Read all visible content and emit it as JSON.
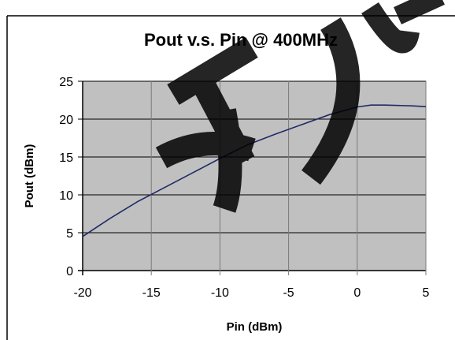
{
  "chart_data": {
    "type": "line",
    "title": "Pout v.s. Pin @ 400MHz",
    "xlabel": "Pin (dBm)",
    "ylabel": "Pout (dBm)",
    "xlim": [
      -20,
      5
    ],
    "ylim": [
      0,
      25
    ],
    "x_ticks": [
      "-20",
      "-15",
      "-10",
      "-5",
      "0",
      "5"
    ],
    "y_ticks": [
      "0",
      "5",
      "10",
      "15",
      "20",
      "25"
    ],
    "grid": true,
    "legend": "none",
    "plot_background": "#c0c0c0",
    "series": [
      {
        "color": "#1f2a66",
        "x": [
          -20,
          -18,
          -16,
          -14,
          -12,
          -10,
          -8,
          -6,
          -4,
          -2,
          0,
          1,
          2,
          3,
          4,
          5
        ],
        "y": [
          4.5,
          6.9,
          9.1,
          11.0,
          12.9,
          14.8,
          16.6,
          18.0,
          19.3,
          20.6,
          21.6,
          21.85,
          21.85,
          21.8,
          21.75,
          21.65
        ]
      }
    ]
  },
  "watermark_text": "苏州"
}
